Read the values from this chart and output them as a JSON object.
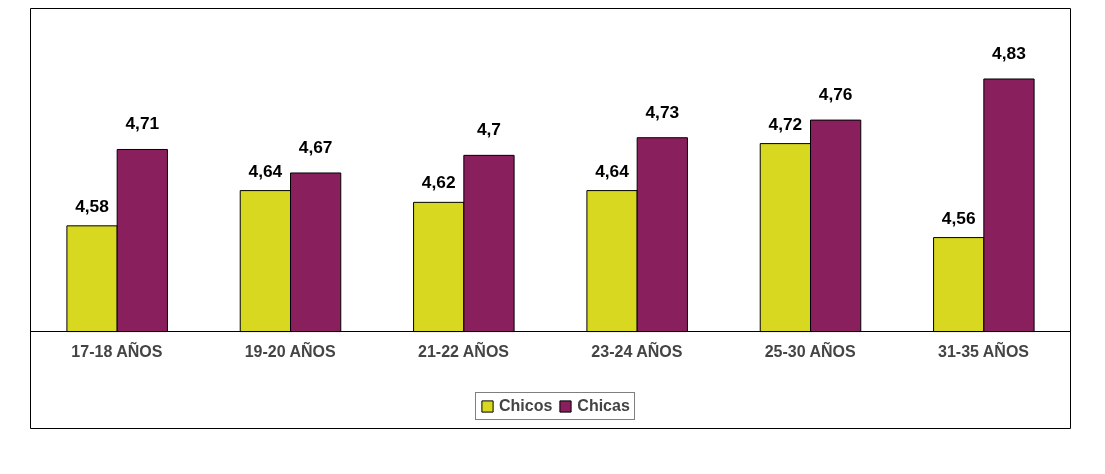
{
  "chart_data": {
    "type": "bar",
    "categories": [
      "17-18 AÑOS",
      "19-20 AÑOS",
      "21-22 AÑOS",
      "23-24 AÑOS",
      "25-30 AÑOS",
      "31-35 AÑOS"
    ],
    "series": [
      {
        "name": "Chicos",
        "color": "#d8d820",
        "values": [
          4.58,
          4.64,
          4.62,
          4.64,
          4.72,
          4.56
        ],
        "value_labels": [
          "4,58",
          "4,64",
          "4,62",
          "4,64",
          "4,72",
          "4,56"
        ]
      },
      {
        "name": "Chicas",
        "color": "#8a1f5e",
        "values": [
          4.71,
          4.67,
          4.7,
          4.73,
          4.76,
          4.83
        ],
        "value_labels": [
          "4,71",
          "4,67",
          "4,7",
          "4,73",
          "4,76",
          "4,83"
        ]
      }
    ],
    "ylim": [
      4.4,
      4.95
    ],
    "tick_labels": "x",
    "grid": false,
    "legend": "bottom"
  }
}
